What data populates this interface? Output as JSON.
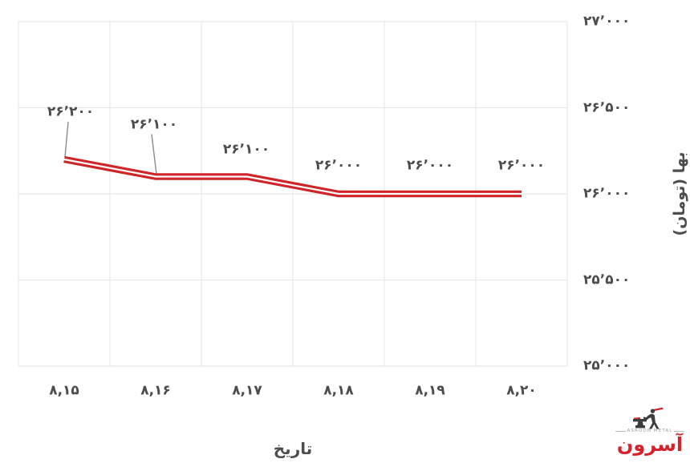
{
  "chart_data": {
    "type": "line",
    "title": "",
    "xlabel": "تاریخ",
    "ylabel": "بها (تومان)",
    "categories": [
      "۸,۱۵",
      "۸,۱۶",
      "۸,۱۷",
      "۸,۱۸",
      "۸,۱۹",
      "۸,۲۰"
    ],
    "series": [
      {
        "name": "price-toman",
        "values": [
          26200,
          26100,
          26100,
          26000,
          26000,
          26000
        ],
        "point_labels": [
          "۲۶٬۲۰۰",
          "۲۶٬۱۰۰",
          "۲۶٬۱۰۰",
          "۲۶٬۰۰۰",
          "۲۶٬۰۰۰",
          "۲۶٬۰۰۰"
        ]
      }
    ],
    "yticks": {
      "values": [
        27000,
        26500,
        26000,
        25500,
        25000
      ],
      "labels": [
        "۲۷٬۰۰۰",
        "۲۶٬۵۰۰",
        "۲۶٬۰۰۰",
        "۲۵٬۵۰۰",
        "۲۵٬۰۰۰"
      ]
    },
    "ylim": [
      25000,
      27000
    ],
    "grid": true,
    "legend": false,
    "yaxis_position": "right",
    "colors": {
      "line": "#cf2428",
      "line_stripe": "#ffffff",
      "label": "#4d4d4d",
      "grid": "#e8e8e8",
      "leader": "#8c8c8c"
    }
  },
  "logo": {
    "caption": "ASROON METAL",
    "wordmark": "آسرون",
    "brand_color": "#d5232b"
  }
}
